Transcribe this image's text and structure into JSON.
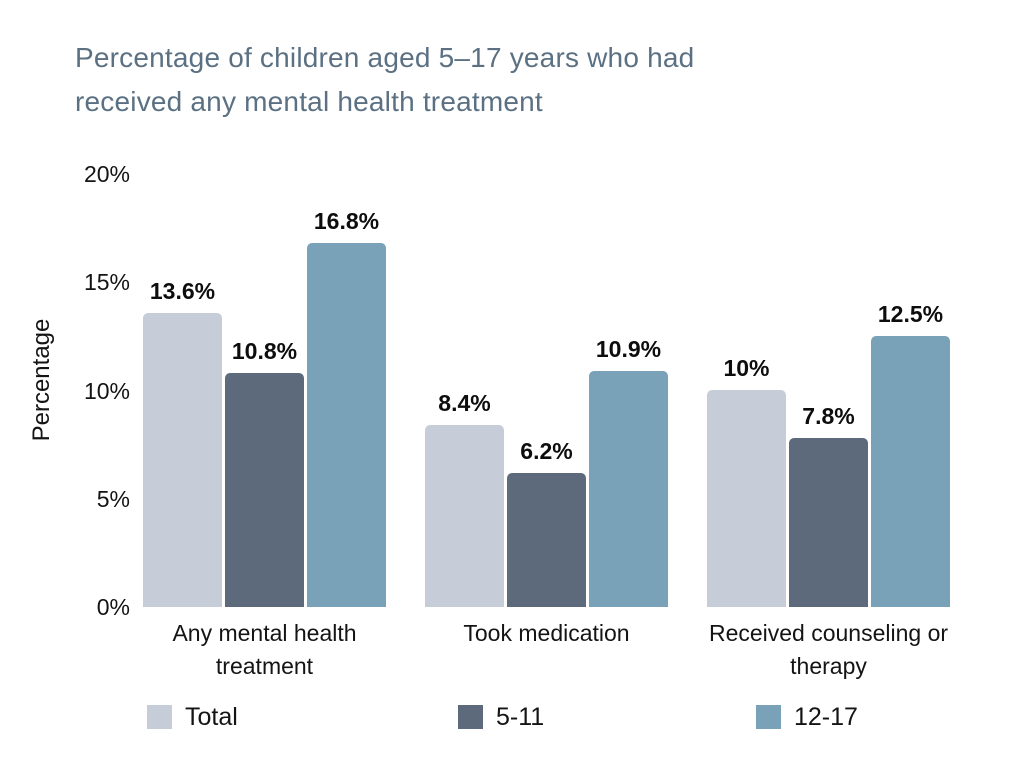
{
  "page": {
    "background_color": "#ffffff",
    "title_color": "#5b7183",
    "text_color": "#141414"
  },
  "header": {
    "title_lines": [
      "Percentage of children aged 5–17 years who had",
      "received any mental health treatment"
    ]
  },
  "chart_data": {
    "type": "bar",
    "title": "Percentage of children aged 5–17 years who had received any mental health treatment",
    "xlabel": "",
    "ylabel": "Percentage",
    "ylim": [
      0,
      20
    ],
    "grid": false,
    "legend_position": "bottom",
    "yticks": [
      {
        "value": 0,
        "label": "0%"
      },
      {
        "value": 5,
        "label": "5%"
      },
      {
        "value": 10,
        "label": "10%"
      },
      {
        "value": 15,
        "label": "15%"
      },
      {
        "value": 20,
        "label": "20%"
      }
    ],
    "categories": [
      "Any mental health treatment",
      "Took medication",
      "Received counseling or therapy"
    ],
    "series": [
      {
        "name": "Total",
        "color": "#c6cdd9",
        "values": [
          13.6,
          8.4,
          10
        ],
        "labels": [
          "13.6%",
          "8.4%",
          "10%"
        ]
      },
      {
        "name": "5-11",
        "color": "#5c6a7c",
        "values": [
          10.8,
          6.2,
          7.8
        ],
        "labels": [
          "10.8%",
          "6.2%",
          "7.8%"
        ]
      },
      {
        "name": "12-17",
        "color": "#79a2b9",
        "values": [
          16.8,
          10.9,
          12.5
        ],
        "labels": [
          "16.8%",
          "10.9%",
          "12.5%"
        ]
      }
    ]
  }
}
